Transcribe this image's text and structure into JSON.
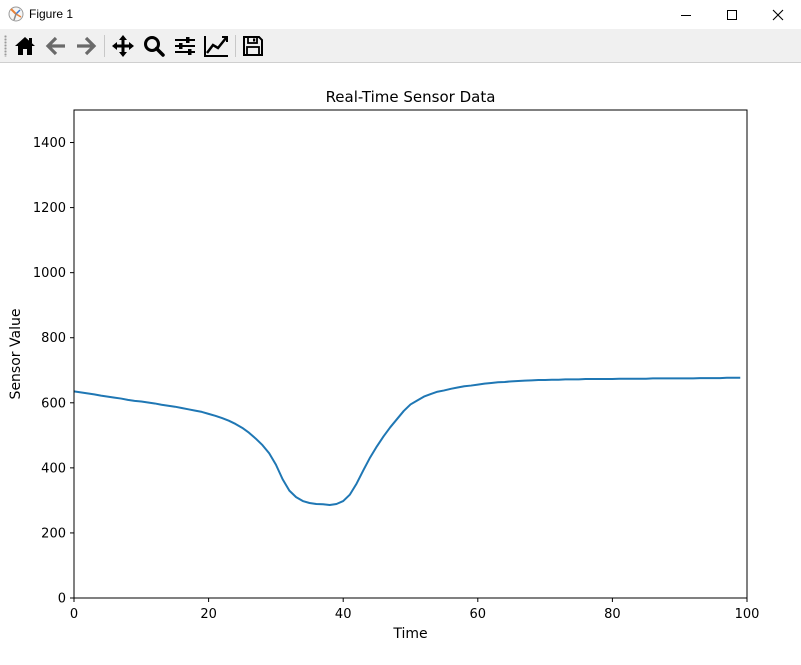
{
  "window": {
    "title": "Figure 1"
  },
  "toolbar": {
    "items": [
      {
        "name": "home-icon",
        "icon": "home"
      },
      {
        "name": "back-icon",
        "icon": "arrow-left"
      },
      {
        "name": "forward-icon",
        "icon": "arrow-right"
      },
      {
        "name": "pan-icon",
        "icon": "move"
      },
      {
        "name": "zoom-icon",
        "icon": "magnifier"
      },
      {
        "name": "configure-subplots-icon",
        "icon": "sliders"
      },
      {
        "name": "edit-axis-icon",
        "icon": "line-chart"
      },
      {
        "name": "save-icon",
        "icon": "floppy-disk"
      }
    ]
  },
  "chart_data": {
    "type": "line",
    "title": "Real-Time Sensor Data",
    "xlabel": "Time",
    "ylabel": "Sensor Value",
    "xlim": [
      0,
      100
    ],
    "ylim": [
      0,
      1500
    ],
    "xticks": [
      0,
      20,
      40,
      60,
      80,
      100
    ],
    "yticks": [
      0,
      200,
      400,
      600,
      800,
      1000,
      1200,
      1400
    ],
    "grid": false,
    "color": "#1f77b4",
    "series": [
      {
        "x": [
          0,
          1,
          2,
          3,
          4,
          5,
          6,
          7,
          8,
          9,
          10,
          11,
          12,
          13,
          14,
          15,
          16,
          17,
          18,
          19,
          20,
          21,
          22,
          23,
          24,
          25,
          26,
          27,
          28,
          29,
          30,
          31,
          32,
          33,
          34,
          35,
          36,
          37,
          38,
          39,
          40,
          41,
          42,
          43,
          44,
          45,
          46,
          47,
          48,
          49,
          50,
          51,
          52,
          53,
          54,
          55,
          56,
          57,
          58,
          59,
          60,
          61,
          62,
          63,
          64,
          65,
          66,
          67,
          68,
          69,
          70,
          71,
          72,
          73,
          74,
          75,
          76,
          77,
          78,
          79,
          80,
          81,
          82,
          83,
          84,
          85,
          86,
          87,
          88,
          89,
          90,
          91,
          92,
          93,
          94,
          95,
          96,
          97,
          98,
          99
        ],
        "values": [
          635,
          632,
          629,
          626,
          622,
          619,
          616,
          613,
          609,
          606,
          604,
          601,
          598,
          594,
          591,
          588,
          584,
          580,
          576,
          572,
          566,
          560,
          553,
          545,
          535,
          523,
          508,
          490,
          470,
          445,
          410,
          365,
          330,
          310,
          298,
          292,
          289,
          288,
          286,
          289,
          298,
          318,
          352,
          393,
          432,
          466,
          497,
          525,
          550,
          575,
          595,
          607,
          619,
          627,
          634,
          638,
          643,
          647,
          651,
          653,
          656,
          659,
          661,
          663,
          664,
          666,
          667,
          668,
          669,
          670,
          670,
          671,
          671,
          672,
          672,
          672,
          673,
          673,
          673,
          673,
          673,
          674,
          674,
          674,
          674,
          674,
          675,
          675,
          675,
          675,
          675,
          675,
          675,
          676,
          676,
          676,
          676,
          677,
          677,
          677
        ]
      }
    ]
  }
}
